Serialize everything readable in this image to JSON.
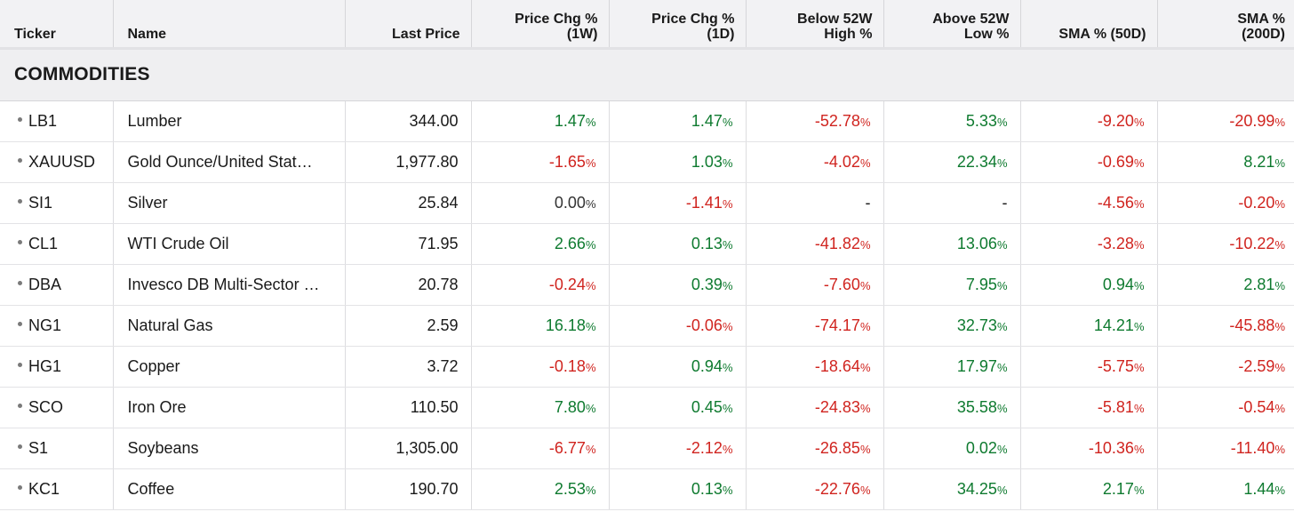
{
  "headers": {
    "ticker": "Ticker",
    "name": "Name",
    "last_price": "Last Price",
    "chg_1w": [
      "Price Chg %",
      "(1W)"
    ],
    "chg_1d": [
      "Price Chg %",
      "(1D)"
    ],
    "below_high": [
      "Below 52W",
      "High %"
    ],
    "above_low": [
      "Above 52W",
      "Low %"
    ],
    "sma50": "SMA % (50D)",
    "sma200": [
      "SMA %",
      "(200D)"
    ]
  },
  "section": {
    "title": "COMMODITIES"
  },
  "colors": {
    "positive": "#0e7a2f",
    "negative": "#d0241f",
    "header_bg": "#f2f2f4"
  },
  "rows": [
    {
      "ticker": "LB1",
      "name": "Lumber",
      "last_price": "344.00",
      "chg_1w": "1.47",
      "chg_1d": "1.47",
      "below_high": "-52.78",
      "above_low": "5.33",
      "sma50": "-9.20",
      "sma200": "-20.99"
    },
    {
      "ticker": "XAUUSD",
      "name": "Gold Ounce/United Stat…",
      "last_price": "1,977.80",
      "chg_1w": "-1.65",
      "chg_1d": "1.03",
      "below_high": "-4.02",
      "above_low": "22.34",
      "sma50": "-0.69",
      "sma200": "8.21"
    },
    {
      "ticker": "SI1",
      "name": "Silver",
      "last_price": "25.84",
      "chg_1w": "0.00",
      "chg_1d": "-1.41",
      "below_high": "-",
      "above_low": "-",
      "sma50": "-4.56",
      "sma200": "-0.20"
    },
    {
      "ticker": "CL1",
      "name": "WTI Crude Oil",
      "last_price": "71.95",
      "chg_1w": "2.66",
      "chg_1d": "0.13",
      "below_high": "-41.82",
      "above_low": "13.06",
      "sma50": "-3.28",
      "sma200": "-10.22"
    },
    {
      "ticker": "DBA",
      "name": "Invesco DB Multi-Sector …",
      "last_price": "20.78",
      "chg_1w": "-0.24",
      "chg_1d": "0.39",
      "below_high": "-7.60",
      "above_low": "7.95",
      "sma50": "0.94",
      "sma200": "2.81"
    },
    {
      "ticker": "NG1",
      "name": "Natural Gas",
      "last_price": "2.59",
      "chg_1w": "16.18",
      "chg_1d": "-0.06",
      "below_high": "-74.17",
      "above_low": "32.73",
      "sma50": "14.21",
      "sma200": "-45.88"
    },
    {
      "ticker": "HG1",
      "name": "Copper",
      "last_price": "3.72",
      "chg_1w": "-0.18",
      "chg_1d": "0.94",
      "below_high": "-18.64",
      "above_low": "17.97",
      "sma50": "-5.75",
      "sma200": "-2.59"
    },
    {
      "ticker": "SCO",
      "name": "Iron Ore",
      "last_price": "110.50",
      "chg_1w": "7.80",
      "chg_1d": "0.45",
      "below_high": "-24.83",
      "above_low": "35.58",
      "sma50": "-5.81",
      "sma200": "-0.54"
    },
    {
      "ticker": "S1",
      "name": "Soybeans",
      "last_price": "1,305.00",
      "chg_1w": "-6.77",
      "chg_1d": "-2.12",
      "below_high": "-26.85",
      "above_low": "0.02",
      "sma50": "-10.36",
      "sma200": "-11.40"
    },
    {
      "ticker": "KC1",
      "name": "Coffee",
      "last_price": "190.70",
      "chg_1w": "2.53",
      "chg_1d": "0.13",
      "below_high": "-22.76",
      "above_low": "34.25",
      "sma50": "2.17",
      "sma200": "1.44"
    }
  ]
}
